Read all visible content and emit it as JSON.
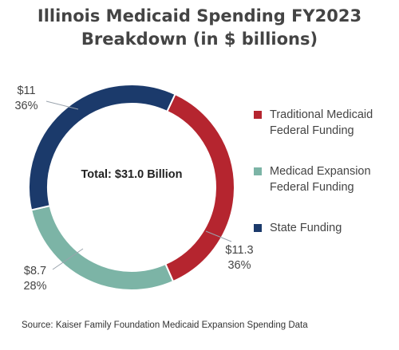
{
  "title_line1": "Illinois Medicaid Spending FY2023",
  "title_line2": "Breakdown (in $ billions)",
  "source": "Source: Kaiser Family Foundation Medicaid Expansion Spending Data",
  "chart_data": {
    "type": "pie",
    "donut": true,
    "center_label": "Total: $31.0 Billion",
    "slices": [
      {
        "name": "Traditional Medicaid Federal Funding",
        "legend_line1": "Traditional Medicaid",
        "legend_line2": "Federal Funding",
        "value": 11.3,
        "label_value": "$11.3",
        "label_pct": "36%",
        "color": "#b5252f"
      },
      {
        "name": "Medicad Expansion Federal Funding",
        "legend_line1": "Medicad Expansion",
        "legend_line2": "Federal Funding",
        "value": 8.7,
        "label_value": "$8.7",
        "label_pct": "28%",
        "color": "#7cb4a6"
      },
      {
        "name": "State Funding",
        "legend_line1": "State Funding",
        "legend_line2": "",
        "value": 11,
        "label_value": "$11",
        "label_pct": "36%",
        "color": "#1b3a6b"
      }
    ],
    "legend_placement": "right"
  }
}
